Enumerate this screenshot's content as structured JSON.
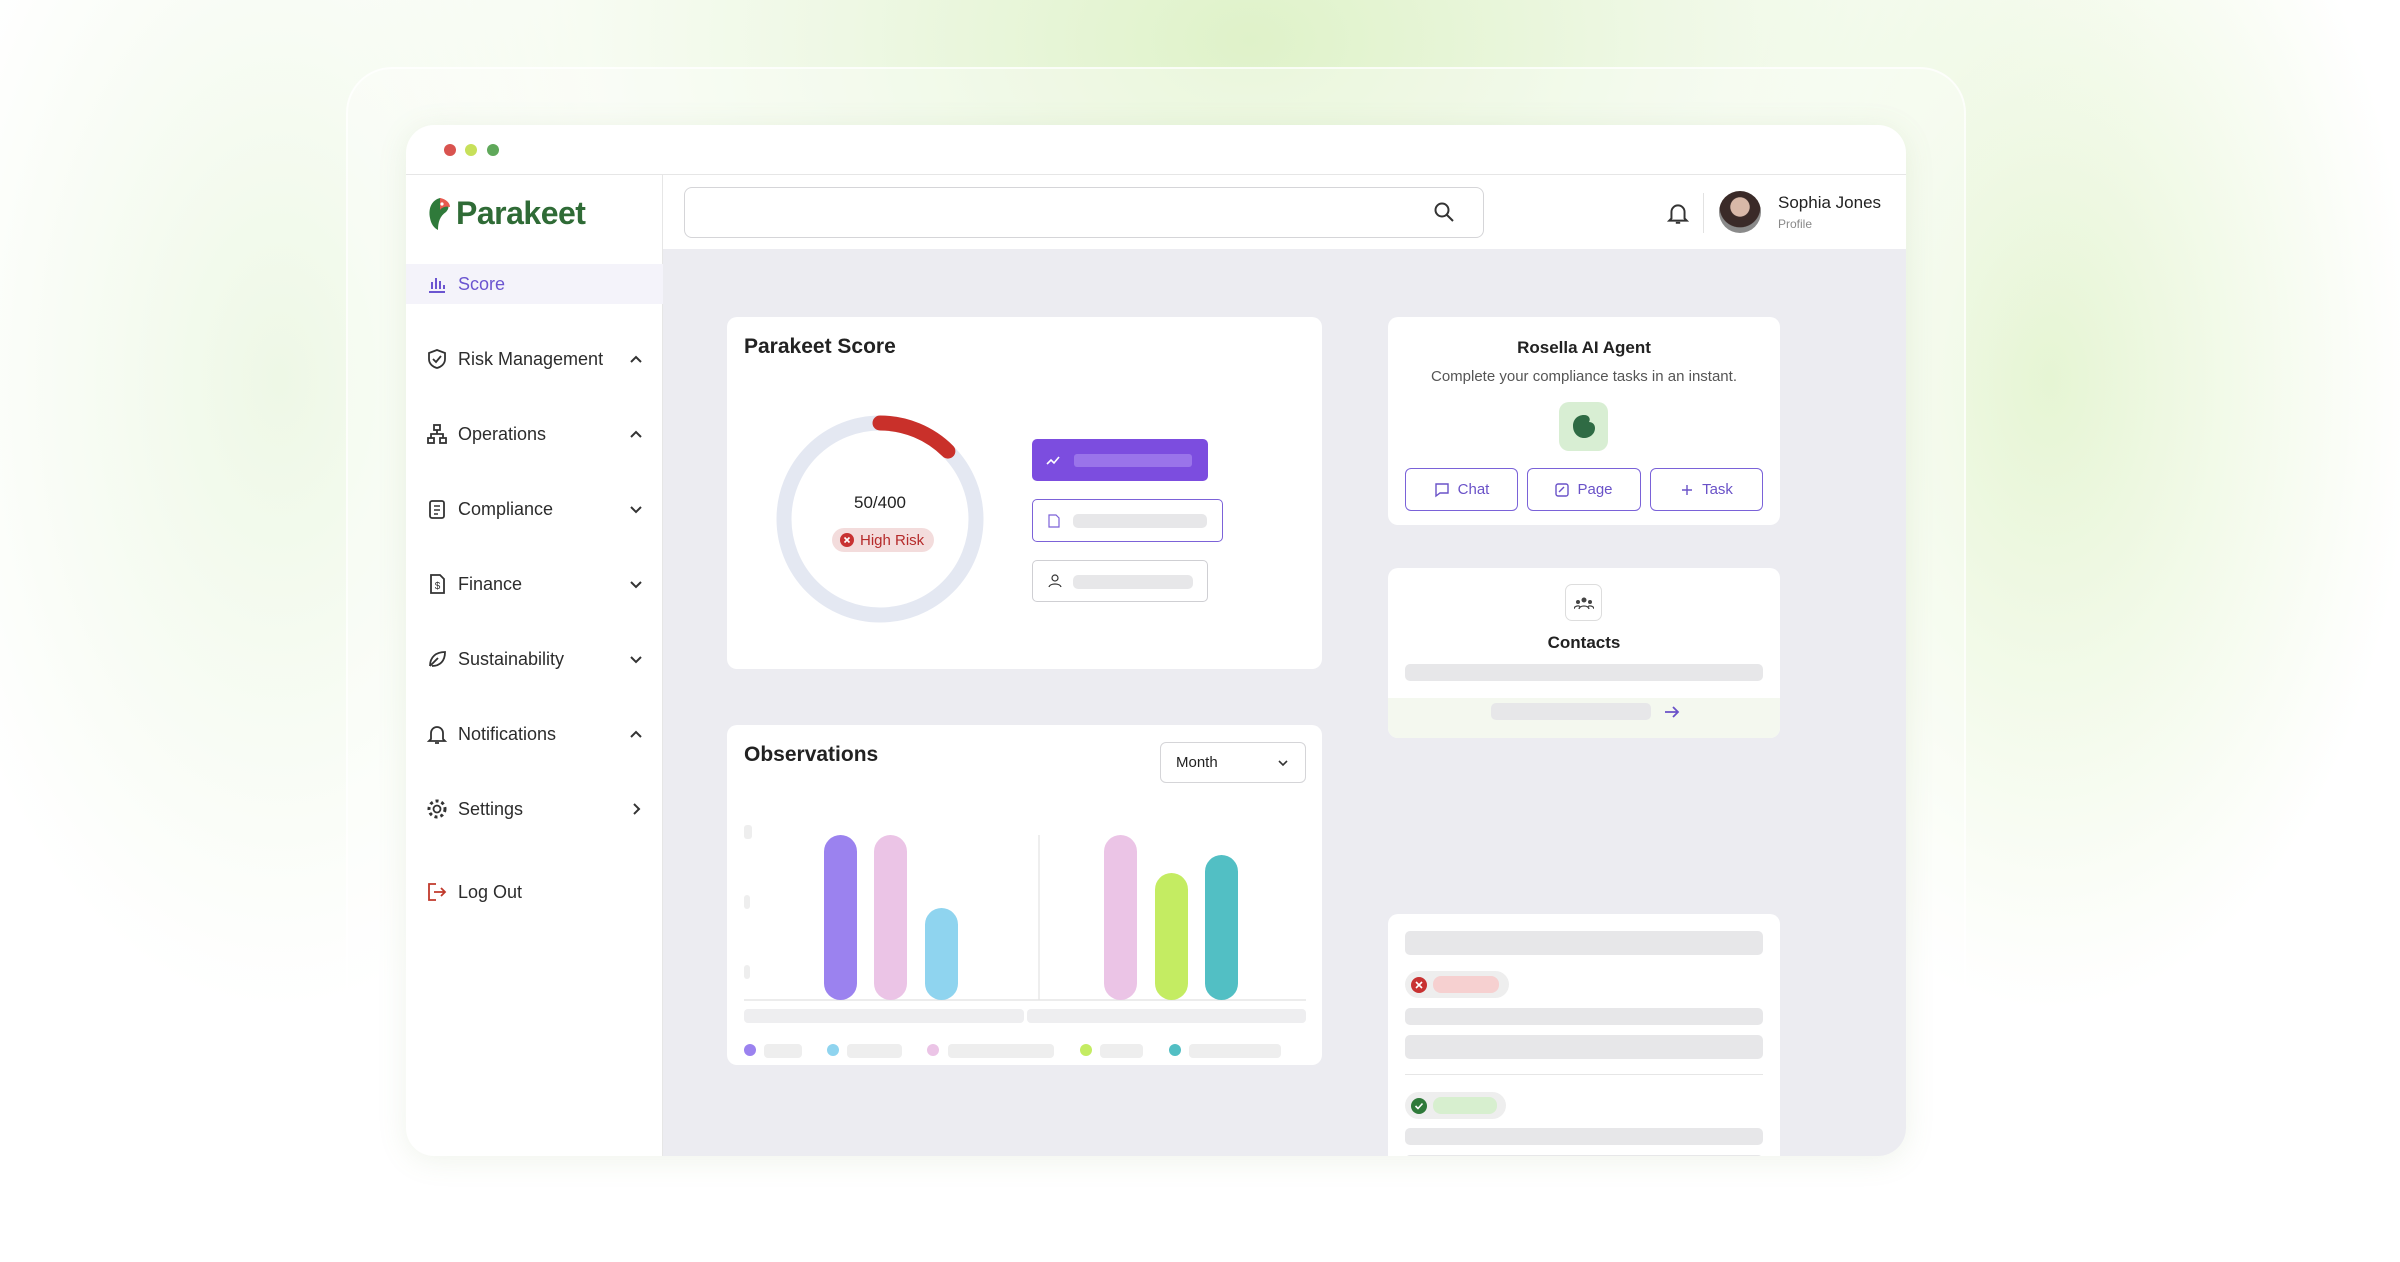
{
  "sidebar": {
    "brand": "Parakeet",
    "nav": [
      "Score",
      "Risk Management",
      "Operations",
      "Compliance",
      "Finance",
      "Sustainability",
      "Notifications",
      "Settings"
    ],
    "logout": "Log Out"
  },
  "header": {
    "user_name": "Sophia Jones",
    "user_role": "Profile"
  },
  "score_card": {
    "title": "Parakeet Score",
    "gauge": {
      "label": "50/400",
      "value": 50,
      "max": 400
    },
    "risk_label": "High Risk"
  },
  "observations": {
    "title": "Observations",
    "period": "Month"
  },
  "agent": {
    "title": "Rosella AI Agent",
    "subtitle": "Complete your compliance tasks in an instant.",
    "actions": [
      "Chat",
      "Page",
      "Task"
    ]
  },
  "contacts": {
    "title": "Contacts"
  }
}
